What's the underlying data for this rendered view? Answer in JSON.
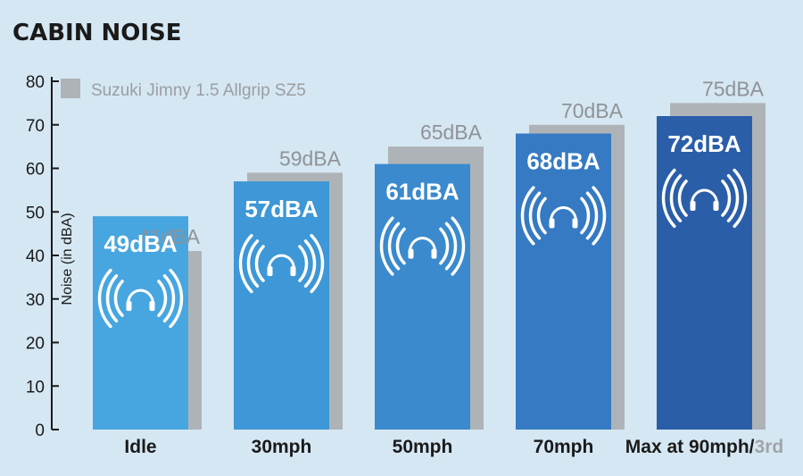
{
  "chart_data": {
    "type": "bar",
    "title": "CABIN NOISE",
    "ylabel": "Noise (in dBA)",
    "ylim": [
      0,
      80
    ],
    "yticks": [
      0,
      10,
      20,
      30,
      40,
      50,
      60,
      70,
      80
    ],
    "categories": [
      "Idle",
      "30mph",
      "50mph",
      "70mph",
      "Max at 90mph/"
    ],
    "category_suffix": "3rd",
    "series": [
      {
        "values": [
          49,
          57,
          61,
          68,
          72
        ],
        "labels": [
          "49dBA",
          "57dBA",
          "61dBA",
          "68dBA",
          "72dBA"
        ],
        "colors": [
          "#47a6e0",
          "#3e97d6",
          "#3a8acd",
          "#357ac3",
          "#2a5ea9"
        ]
      },
      {
        "name": "Suzuki Jimny 1.5 Allgrip SZ5",
        "values": [
          41,
          59,
          65,
          70,
          75
        ],
        "labels": [
          "41dBA",
          "59dBA",
          "65dBA",
          "70dBA",
          "75dBA"
        ],
        "color": "#aeb3b7"
      }
    ],
    "legend": "top-left",
    "grid": false,
    "icon": "headphones-sound-waves-icon"
  }
}
